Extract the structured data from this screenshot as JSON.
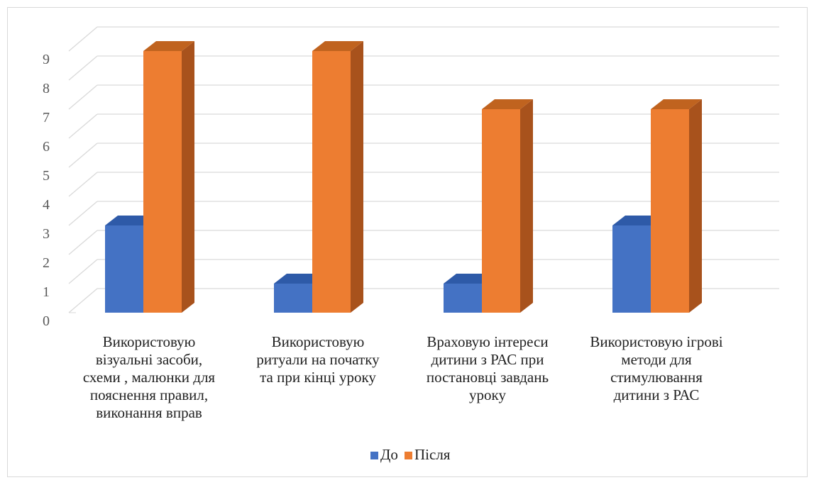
{
  "chart_data": {
    "type": "bar",
    "style": "3d-clustered-column",
    "categories": [
      [
        "Використовую",
        "візуальні засоби,",
        "схеми , малюнки для",
        "пояснення правил,",
        "виконання вправ"
      ],
      [
        "Використовую",
        "ритуали на початку",
        "та при кінці уроку"
      ],
      [
        "Враховую інтереси",
        "дитини з РАС при",
        "постановці завдань",
        "уроку"
      ],
      [
        "Використовую ігрові",
        "методи для",
        "стимулювання",
        "дитини з РАС"
      ]
    ],
    "series": [
      {
        "name": "До",
        "values": [
          3,
          1,
          1,
          3
        ],
        "color": "#4472C4",
        "side_color": "#2F5597",
        "top_color": "#2E5AA8"
      },
      {
        "name": "Після",
        "values": [
          9,
          9,
          7,
          7
        ],
        "color": "#ED7D31",
        "side_color": "#A8521C",
        "top_color": "#C0631F"
      }
    ],
    "ylim": [
      0,
      9
    ],
    "yticks": [
      "0",
      "1",
      "2",
      "3",
      "4",
      "5",
      "6",
      "7",
      "8",
      "9"
    ],
    "grid": true,
    "legend_position": "bottom"
  }
}
